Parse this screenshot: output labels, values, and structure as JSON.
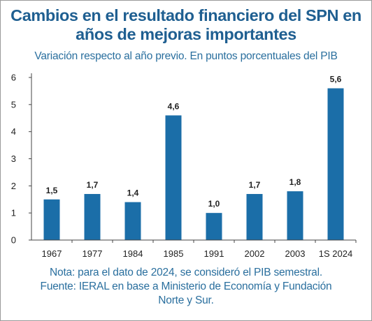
{
  "chart_data": {
    "type": "bar",
    "title_line1": "Cambios en el resultado financiero del SPN en",
    "title_line2": "años de mejoras importantes",
    "subtitle": "Variación respecto al año previo. En puntos porcentuales del PIB",
    "categories": [
      "1967",
      "1977",
      "1984",
      "1985",
      "1991",
      "2002",
      "2003",
      "1S 2024"
    ],
    "values": [
      1.5,
      1.7,
      1.4,
      4.6,
      1.0,
      1.7,
      1.8,
      5.6
    ],
    "data_labels": [
      "1,5",
      "1,7",
      "1,4",
      "4,6",
      "1,0",
      "1,7",
      "1,8",
      "5,6"
    ],
    "y_ticks": [
      0,
      1,
      2,
      3,
      4,
      5,
      6
    ],
    "ylim": [
      0,
      6
    ],
    "grid": false,
    "legend": "none",
    "bar_color": "#1b6ea8",
    "title_color": "#1f5f91",
    "text_color": "#2a6f9e"
  },
  "notes": {
    "line1": "Nota: para el dato de 2024, se consideró el PIB semestral.",
    "line2": "Fuente: IERAL en base a Ministerio de Economía y Fundación",
    "line3": "Norte y Sur."
  }
}
